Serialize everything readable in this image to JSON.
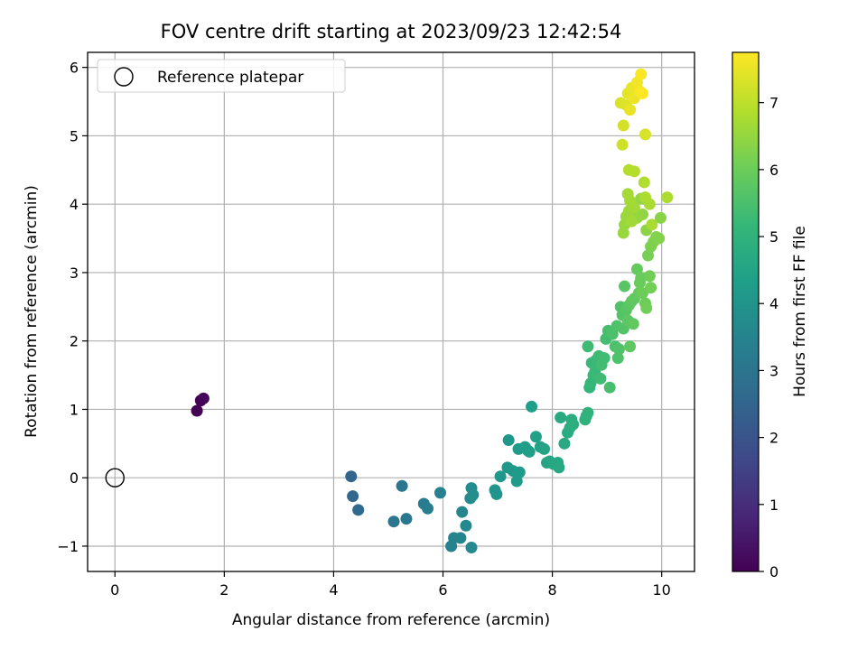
{
  "chart_data": {
    "type": "scatter",
    "title": "FOV centre drift starting at 2023/09/23 12:42:54",
    "xlabel": "Angular distance from reference (arcmin)",
    "ylabel": "Rotation from reference (arcmin)",
    "xlim": [
      -0.5,
      10.6
    ],
    "ylim": [
      -1.37,
      6.22
    ],
    "xticks": [
      0,
      2,
      4,
      6,
      8,
      10
    ],
    "yticks": [
      -1,
      0,
      1,
      2,
      3,
      4,
      5,
      6
    ],
    "grid": true,
    "legend": {
      "position": "upper-left",
      "entries": [
        "Reference platepar"
      ]
    },
    "reference": {
      "label": "Reference platepar",
      "x": 0,
      "y": 0,
      "marker": "open-circle"
    },
    "colorbar": {
      "label": "Hours from first FF file",
      "colormap": "viridis",
      "range": [
        0,
        7.75
      ],
      "ticks": [
        0,
        1,
        2,
        3,
        4,
        5,
        6,
        7
      ]
    },
    "series": [
      {
        "points": [
          [
            1.5,
            0.98,
            0.0
          ],
          [
            1.57,
            1.13,
            0.05
          ],
          [
            1.62,
            1.16,
            0.1
          ],
          [
            4.32,
            0.02,
            2.5
          ],
          [
            4.35,
            -0.27,
            2.55
          ],
          [
            4.45,
            -0.47,
            2.6
          ],
          [
            5.1,
            -0.64,
            3.0
          ],
          [
            5.25,
            -0.12,
            3.05
          ],
          [
            5.33,
            -0.6,
            3.1
          ],
          [
            5.65,
            -0.38,
            3.25
          ],
          [
            5.72,
            -0.45,
            3.3
          ],
          [
            5.95,
            -0.22,
            3.4
          ],
          [
            6.15,
            -1.0,
            3.45
          ],
          [
            6.2,
            -0.88,
            3.5
          ],
          [
            6.32,
            -0.88,
            3.55
          ],
          [
            6.35,
            -0.5,
            3.6
          ],
          [
            6.42,
            -0.7,
            3.65
          ],
          [
            6.5,
            -0.3,
            3.7
          ],
          [
            6.52,
            -1.02,
            3.7
          ],
          [
            6.52,
            -0.15,
            3.75
          ],
          [
            6.55,
            -0.25,
            3.8
          ],
          [
            6.95,
            -0.18,
            4.0
          ],
          [
            6.98,
            -0.24,
            4.0
          ],
          [
            7.05,
            0.02,
            4.05
          ],
          [
            7.18,
            0.15,
            4.1
          ],
          [
            7.2,
            0.55,
            4.1
          ],
          [
            7.28,
            0.1,
            4.15
          ],
          [
            7.35,
            -0.05,
            4.2
          ],
          [
            7.38,
            0.42,
            4.2
          ],
          [
            7.4,
            0.08,
            4.25
          ],
          [
            7.5,
            0.45,
            4.3
          ],
          [
            7.55,
            0.4,
            4.3
          ],
          [
            7.58,
            0.38,
            4.35
          ],
          [
            7.62,
            1.04,
            4.35
          ],
          [
            7.7,
            0.6,
            4.4
          ],
          [
            7.78,
            0.45,
            4.45
          ],
          [
            7.85,
            0.42,
            4.5
          ],
          [
            7.9,
            0.22,
            4.5
          ],
          [
            7.95,
            0.24,
            4.55
          ],
          [
            8.02,
            0.2,
            4.6
          ],
          [
            8.1,
            0.22,
            4.6
          ],
          [
            8.12,
            0.15,
            4.65
          ],
          [
            8.15,
            0.88,
            4.7
          ],
          [
            8.22,
            0.5,
            4.7
          ],
          [
            8.28,
            0.66,
            4.75
          ],
          [
            8.32,
            0.73,
            4.8
          ],
          [
            8.35,
            0.85,
            4.8
          ],
          [
            8.38,
            0.78,
            4.85
          ],
          [
            8.6,
            0.85,
            4.95
          ],
          [
            8.62,
            0.9,
            5.0
          ],
          [
            8.65,
            0.95,
            5.0
          ],
          [
            8.65,
            1.92,
            5.3
          ],
          [
            8.68,
            1.32,
            5.1
          ],
          [
            8.7,
            1.38,
            5.15
          ],
          [
            8.72,
            1.68,
            5.2
          ],
          [
            8.75,
            1.5,
            5.2
          ],
          [
            8.78,
            1.55,
            5.25
          ],
          [
            8.8,
            1.72,
            5.25
          ],
          [
            8.85,
            1.78,
            5.3
          ],
          [
            8.88,
            1.45,
            5.3
          ],
          [
            8.9,
            1.65,
            5.35
          ],
          [
            8.95,
            1.75,
            5.35
          ],
          [
            8.98,
            2.03,
            5.4
          ],
          [
            9.02,
            2.15,
            5.45
          ],
          [
            9.05,
            1.32,
            5.45
          ],
          [
            9.1,
            2.1,
            5.5
          ],
          [
            9.15,
            1.92,
            5.5
          ],
          [
            9.18,
            2.22,
            5.55
          ],
          [
            9.2,
            1.75,
            5.55
          ],
          [
            9.22,
            1.88,
            5.6
          ],
          [
            9.25,
            2.5,
            5.6
          ],
          [
            9.28,
            2.38,
            5.65
          ],
          [
            9.3,
            2.18,
            5.65
          ],
          [
            9.32,
            2.8,
            5.7
          ],
          [
            9.35,
            2.45,
            5.7
          ],
          [
            9.38,
            2.3,
            5.75
          ],
          [
            9.4,
            2.52,
            5.75
          ],
          [
            9.42,
            1.92,
            5.8
          ],
          [
            9.45,
            2.58,
            5.8
          ],
          [
            9.48,
            2.25,
            5.85
          ],
          [
            9.5,
            2.62,
            5.85
          ],
          [
            9.55,
            3.05,
            5.9
          ],
          [
            9.58,
            2.7,
            5.9
          ],
          [
            9.6,
            2.85,
            5.95
          ],
          [
            9.62,
            2.92,
            5.95
          ],
          [
            9.65,
            2.7,
            6.0
          ],
          [
            9.7,
            2.55,
            6.0
          ],
          [
            9.72,
            2.48,
            6.05
          ],
          [
            9.78,
            2.95,
            6.05
          ],
          [
            9.8,
            2.78,
            6.1
          ],
          [
            9.75,
            3.25,
            6.15
          ],
          [
            9.8,
            3.38,
            6.2
          ],
          [
            9.85,
            3.45,
            6.25
          ],
          [
            9.9,
            3.52,
            6.3
          ],
          [
            9.95,
            3.5,
            6.3
          ],
          [
            9.98,
            3.8,
            6.35
          ],
          [
            9.72,
            3.62,
            6.4
          ],
          [
            9.65,
            3.85,
            6.45
          ],
          [
            9.62,
            4.08,
            6.5
          ],
          [
            9.55,
            3.8,
            6.5
          ],
          [
            9.3,
            3.58,
            6.55
          ],
          [
            9.32,
            3.7,
            6.55
          ],
          [
            9.35,
            3.82,
            6.6
          ],
          [
            9.4,
            3.9,
            6.6
          ],
          [
            9.45,
            3.75,
            6.65
          ],
          [
            9.5,
            3.95,
            6.65
          ],
          [
            9.38,
            4.15,
            6.7
          ],
          [
            9.42,
            4.05,
            6.7
          ],
          [
            9.78,
            4.0,
            6.75
          ],
          [
            9.82,
            3.7,
            6.75
          ],
          [
            9.7,
            4.1,
            6.8
          ],
          [
            10.1,
            4.1,
            6.8
          ],
          [
            9.68,
            4.32,
            6.85
          ],
          [
            9.4,
            4.5,
            6.9
          ],
          [
            9.5,
            4.48,
            6.9
          ],
          [
            9.28,
            4.87,
            7.2
          ],
          [
            9.3,
            5.15,
            7.25
          ],
          [
            9.7,
            5.02,
            7.3
          ],
          [
            9.25,
            5.48,
            7.35
          ],
          [
            9.35,
            5.45,
            7.4
          ],
          [
            9.38,
            5.62,
            7.45
          ],
          [
            9.42,
            5.38,
            7.5
          ],
          [
            9.45,
            5.7,
            7.5
          ],
          [
            9.5,
            5.55,
            7.55
          ],
          [
            9.55,
            5.78,
            7.6
          ],
          [
            9.6,
            5.65,
            7.65
          ],
          [
            9.62,
            5.9,
            7.7
          ],
          [
            9.65,
            5.62,
            7.75
          ]
        ]
      }
    ]
  }
}
